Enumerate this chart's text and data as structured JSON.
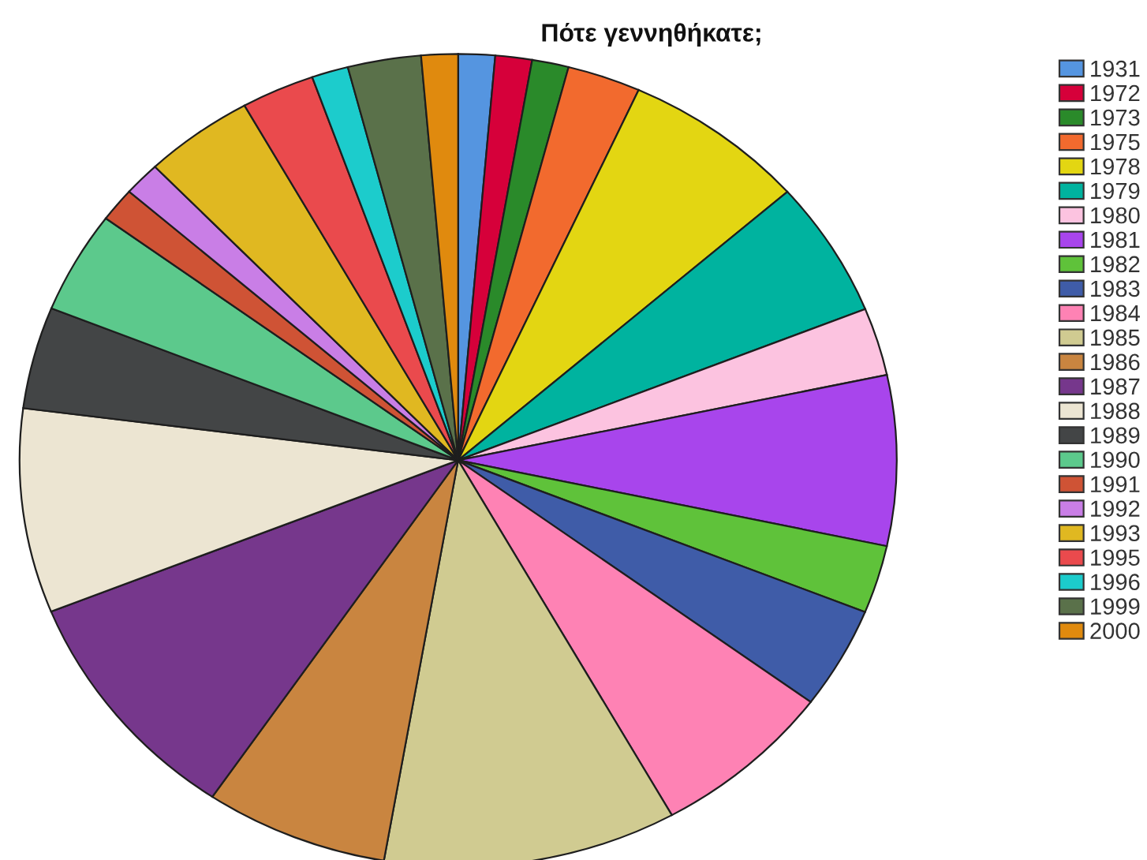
{
  "chart_data": {
    "type": "pie",
    "title": "Πότε γεννηθήκατε;",
    "categories": [
      "1931",
      "1972",
      "1973",
      "1975",
      "1978",
      "1979",
      "1980",
      "1981",
      "1982",
      "1983",
      "1984",
      "1985",
      "1986",
      "1987",
      "1988",
      "1989",
      "1990",
      "1991",
      "1992",
      "1993",
      "1995",
      "1996",
      "1999",
      "2000"
    ],
    "values": [
      1.35,
      1.35,
      1.35,
      2.7,
      6.76,
      5.42,
      2.7,
      6.76,
      2.7,
      4.05,
      6.76,
      10.81,
      6.76,
      9.46,
      8.12,
      4.05,
      4.05,
      1.35,
      1.35,
      4.05,
      2.7,
      1.35,
      2.7,
      1.35
    ],
    "colors": [
      "#5595e0",
      "#d6003a",
      "#2a8a2a",
      "#f26a2e",
      "#e3d612",
      "#00b39f",
      "#fcc3e0",
      "#a845ec",
      "#5fc23a",
      "#3f5ca8",
      "#fe82b4",
      "#d0cb91",
      "#c98540",
      "#76378c",
      "#ece5d2",
      "#434546",
      "#5cc98c",
      "#cf5335",
      "#c97ee6",
      "#e0b821",
      "#ea4a4d",
      "#1ccccc",
      "#5a714a",
      "#e08a0e"
    ],
    "legend": "right"
  }
}
